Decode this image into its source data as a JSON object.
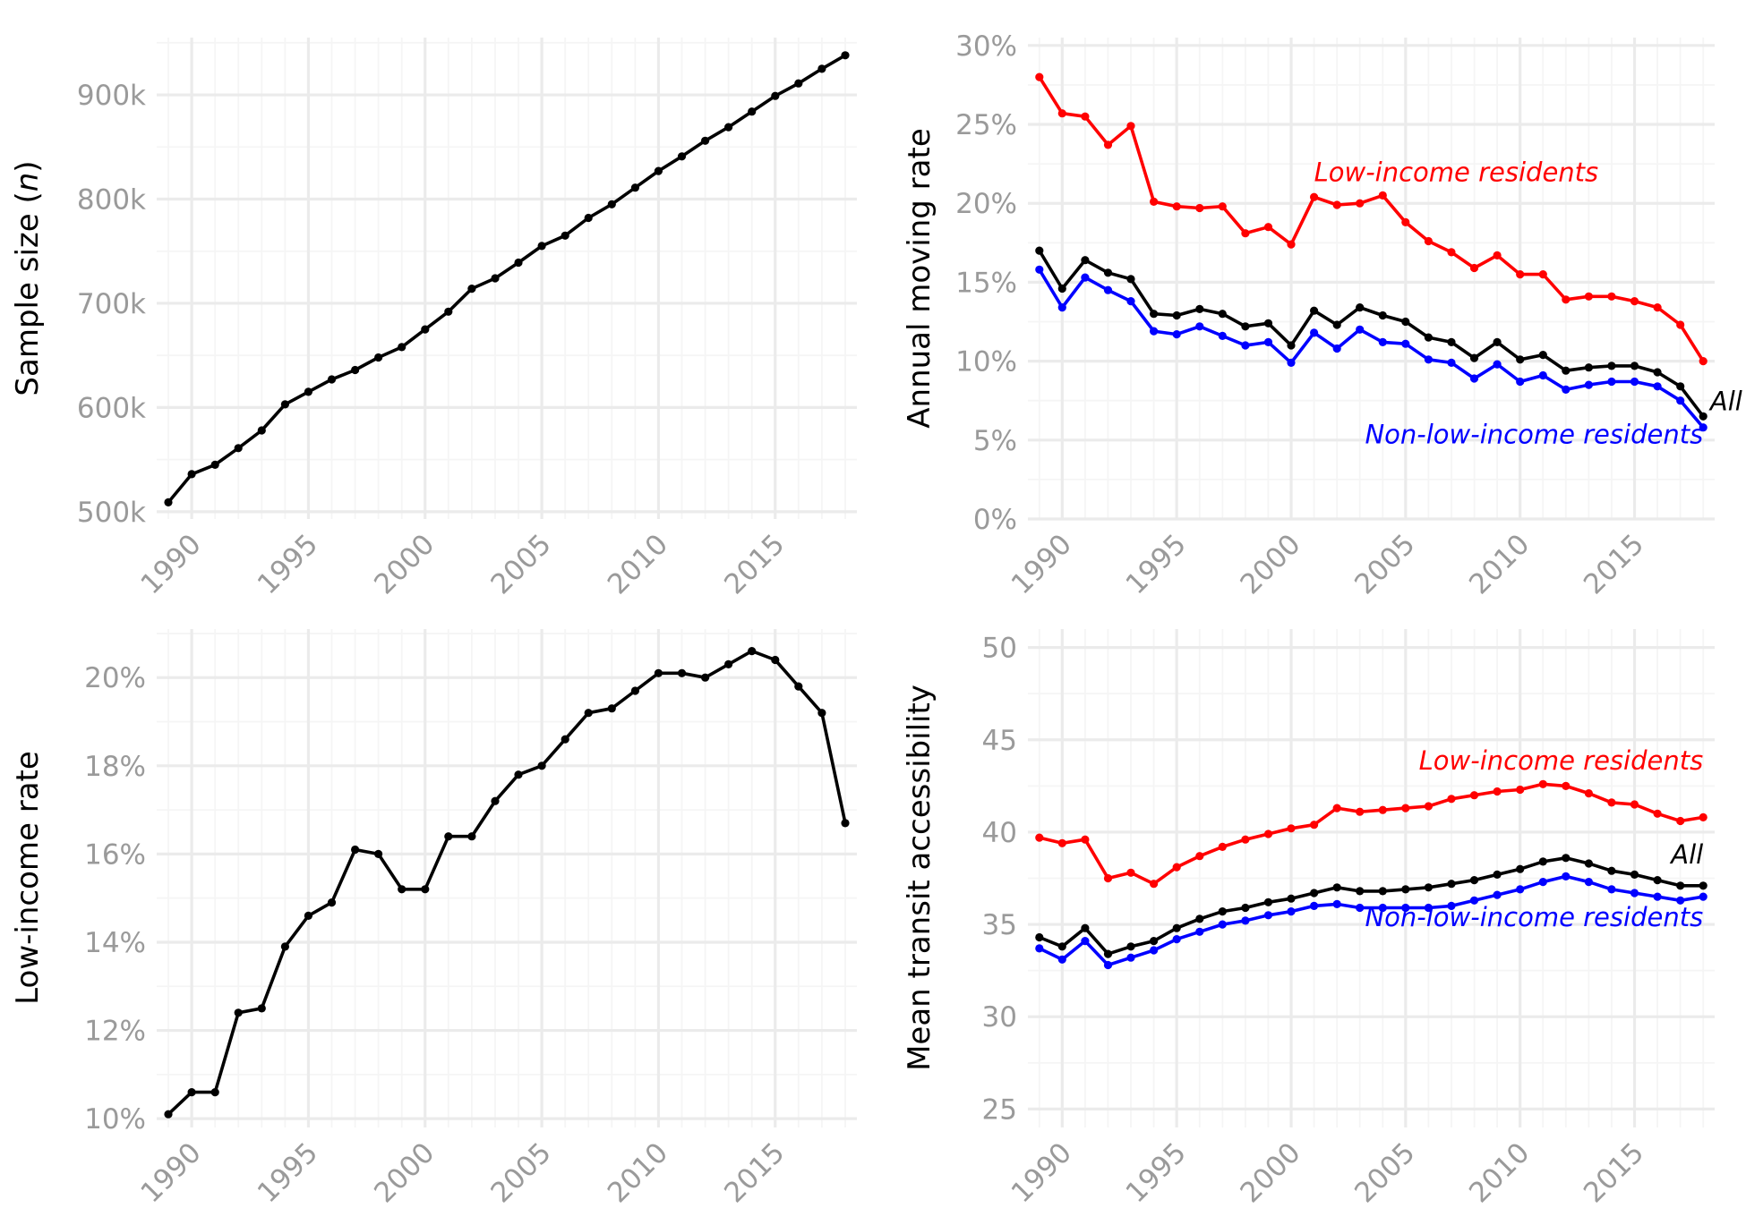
{
  "chart_data": [
    {
      "type": "line",
      "title": "",
      "xlabel": "",
      "ylabel_prefix": "Sample size (",
      "ylabel_var": "n",
      "ylabel_suffix": ")",
      "xlim": [
        1988.5,
        2018.5
      ],
      "ylim": [
        493000,
        955000
      ],
      "x_ticks": [
        1990,
        1995,
        2000,
        2005,
        2010,
        2015
      ],
      "x_tick_labels": [
        "1990",
        "1995",
        "2000",
        "2005",
        "2010",
        "2015"
      ],
      "y_ticks": [
        500000,
        600000,
        700000,
        800000,
        900000
      ],
      "y_tick_labels": [
        "500k",
        "600k",
        "700k",
        "800k",
        "900k"
      ],
      "grid": true,
      "x": [
        1989,
        1990,
        1991,
        1992,
        1993,
        1994,
        1995,
        1996,
        1997,
        1998,
        1999,
        2000,
        2001,
        2002,
        2003,
        2004,
        2005,
        2006,
        2007,
        2008,
        2009,
        2010,
        2011,
        2012,
        2013,
        2014,
        2015,
        2016,
        2017,
        2018
      ],
      "series": [
        {
          "color": "#000000",
          "values": [
            509000,
            536000,
            545000,
            561000,
            578000,
            603000,
            615000,
            627000,
            636000,
            648000,
            658000,
            675000,
            692000,
            714000,
            724000,
            739000,
            755000,
            765000,
            782000,
            795000,
            811000,
            827000,
            841000,
            856000,
            869000,
            884000,
            899000,
            911000,
            925000,
            938000
          ]
        }
      ],
      "annotations": []
    },
    {
      "type": "line",
      "title": "",
      "xlabel": "",
      "ylabel": "Annual moving rate",
      "xlim": [
        1988.5,
        2018.5
      ],
      "ylim": [
        0,
        30.5
      ],
      "x_ticks": [
        1990,
        1995,
        2000,
        2005,
        2010,
        2015
      ],
      "x_tick_labels": [
        "1990",
        "1995",
        "2000",
        "2005",
        "2010",
        "2015"
      ],
      "y_ticks": [
        0,
        5,
        10,
        15,
        20,
        25,
        30
      ],
      "y_tick_labels": [
        "0%",
        "5%",
        "10%",
        "15%",
        "20%",
        "25%",
        "30%"
      ],
      "grid": true,
      "x": [
        1989,
        1990,
        1991,
        1992,
        1993,
        1994,
        1995,
        1996,
        1997,
        1998,
        1999,
        2000,
        2001,
        2002,
        2003,
        2004,
        2005,
        2006,
        2007,
        2008,
        2009,
        2010,
        2011,
        2012,
        2013,
        2014,
        2015,
        2016,
        2017,
        2018
      ],
      "series": [
        {
          "color": "#ff0000",
          "values": [
            28.0,
            25.7,
            25.5,
            23.7,
            24.9,
            20.1,
            19.8,
            19.7,
            19.8,
            18.1,
            18.5,
            17.4,
            20.4,
            19.9,
            20.0,
            20.5,
            18.8,
            17.6,
            16.9,
            15.9,
            16.7,
            15.5,
            15.5,
            13.9,
            14.1,
            14.1,
            13.8,
            13.4,
            12.3,
            10.0
          ]
        },
        {
          "color": "#000000",
          "values": [
            17.0,
            14.6,
            16.4,
            15.6,
            15.2,
            13.0,
            12.9,
            13.3,
            13.0,
            12.2,
            12.4,
            11.0,
            13.2,
            12.3,
            13.4,
            12.9,
            12.5,
            11.5,
            11.2,
            10.2,
            11.2,
            10.1,
            10.4,
            9.4,
            9.6,
            9.7,
            9.7,
            9.3,
            8.4,
            6.5
          ]
        },
        {
          "color": "#0000ff",
          "values": [
            15.8,
            13.4,
            15.3,
            14.5,
            13.8,
            11.9,
            11.7,
            12.2,
            11.6,
            11.0,
            11.2,
            9.9,
            11.8,
            10.8,
            12.0,
            11.2,
            11.1,
            10.1,
            9.9,
            8.9,
            9.8,
            8.7,
            9.1,
            8.2,
            8.5,
            8.7,
            8.7,
            8.4,
            7.5,
            5.8
          ]
        }
      ],
      "annotations": [
        {
          "text": "Low-income residents",
          "color": "#ff0000",
          "x": 2001,
          "y": 21.4,
          "anchor": "start"
        },
        {
          "text": "All",
          "color": "#000000",
          "x": 2018.3,
          "y": 6.9,
          "anchor": "start"
        },
        {
          "text": "Non-low-income residents",
          "color": "#0000ff",
          "x": 2018,
          "y": 4.8,
          "anchor": "end"
        }
      ]
    },
    {
      "type": "line",
      "title": "",
      "xlabel": "",
      "ylabel": "Low-income rate",
      "xlim": [
        1988.5,
        2018.5
      ],
      "ylim": [
        9.8,
        21.1
      ],
      "x_ticks": [
        1990,
        1995,
        2000,
        2005,
        2010,
        2015
      ],
      "x_tick_labels": [
        "1990",
        "1995",
        "2000",
        "2005",
        "2010",
        "2015"
      ],
      "y_ticks": [
        10,
        12,
        14,
        16,
        18,
        20
      ],
      "y_tick_labels": [
        "10%",
        "12%",
        "14%",
        "16%",
        "18%",
        "20%"
      ],
      "grid": true,
      "x": [
        1989,
        1990,
        1991,
        1992,
        1993,
        1994,
        1995,
        1996,
        1997,
        1998,
        1999,
        2000,
        2001,
        2002,
        2003,
        2004,
        2005,
        2006,
        2007,
        2008,
        2009,
        2010,
        2011,
        2012,
        2013,
        2014,
        2015,
        2016,
        2017,
        2018
      ],
      "series": [
        {
          "color": "#000000",
          "values": [
            10.1,
            10.6,
            10.6,
            12.4,
            12.5,
            13.9,
            14.6,
            14.9,
            16.1,
            16.0,
            15.2,
            15.2,
            16.4,
            16.4,
            17.2,
            17.8,
            18.0,
            18.6,
            19.2,
            19.3,
            19.7,
            20.1,
            20.1,
            20.0,
            20.3,
            20.6,
            20.4,
            19.8,
            19.2,
            16.7
          ]
        }
      ],
      "annotations": []
    },
    {
      "type": "line",
      "title": "",
      "xlabel": "",
      "ylabel": "Mean transit accessibility",
      "xlim": [
        1988.5,
        2018.5
      ],
      "ylim": [
        24,
        51
      ],
      "x_ticks": [
        1990,
        1995,
        2000,
        2005,
        2010,
        2015
      ],
      "x_tick_labels": [
        "1990",
        "1995",
        "2000",
        "2005",
        "2010",
        "2015"
      ],
      "y_ticks": [
        25,
        30,
        35,
        40,
        45,
        50
      ],
      "y_tick_labels": [
        "25",
        "30",
        "35",
        "40",
        "45",
        "50"
      ],
      "grid": true,
      "x": [
        1989,
        1990,
        1991,
        1992,
        1993,
        1994,
        1995,
        1996,
        1997,
        1998,
        1999,
        2000,
        2001,
        2002,
        2003,
        2004,
        2005,
        2006,
        2007,
        2008,
        2009,
        2010,
        2011,
        2012,
        2013,
        2014,
        2015,
        2016,
        2017,
        2018
      ],
      "series": [
        {
          "color": "#ff0000",
          "values": [
            39.7,
            39.4,
            39.6,
            37.5,
            37.8,
            37.2,
            38.1,
            38.7,
            39.2,
            39.6,
            39.9,
            40.2,
            40.4,
            41.3,
            41.1,
            41.2,
            41.3,
            41.4,
            41.8,
            42.0,
            42.2,
            42.3,
            42.6,
            42.5,
            42.1,
            41.6,
            41.5,
            41.0,
            40.6,
            40.8
          ]
        },
        {
          "color": "#000000",
          "values": [
            34.3,
            33.8,
            34.8,
            33.4,
            33.8,
            34.1,
            34.8,
            35.3,
            35.7,
            35.9,
            36.2,
            36.4,
            36.7,
            37.0,
            36.8,
            36.8,
            36.9,
            37.0,
            37.2,
            37.4,
            37.7,
            38.0,
            38.4,
            38.6,
            38.3,
            37.9,
            37.7,
            37.4,
            37.1,
            37.1
          ]
        },
        {
          "color": "#0000ff",
          "values": [
            33.7,
            33.1,
            34.1,
            32.8,
            33.2,
            33.6,
            34.2,
            34.6,
            35.0,
            35.2,
            35.5,
            35.7,
            36.0,
            36.1,
            35.9,
            35.9,
            35.9,
            35.9,
            36.0,
            36.3,
            36.6,
            36.9,
            37.3,
            37.6,
            37.3,
            36.9,
            36.7,
            36.5,
            36.3,
            36.5
          ]
        }
      ],
      "annotations": [
        {
          "text": "Low-income residents",
          "color": "#ff0000",
          "x": 2018,
          "y": 43.4,
          "anchor": "end"
        },
        {
          "text": "All",
          "color": "#000000",
          "x": 2018,
          "y": 38.3,
          "anchor": "end"
        },
        {
          "text": "Non-low-income residents",
          "color": "#0000ff",
          "x": 2018,
          "y": 34.9,
          "anchor": "end"
        }
      ]
    }
  ]
}
